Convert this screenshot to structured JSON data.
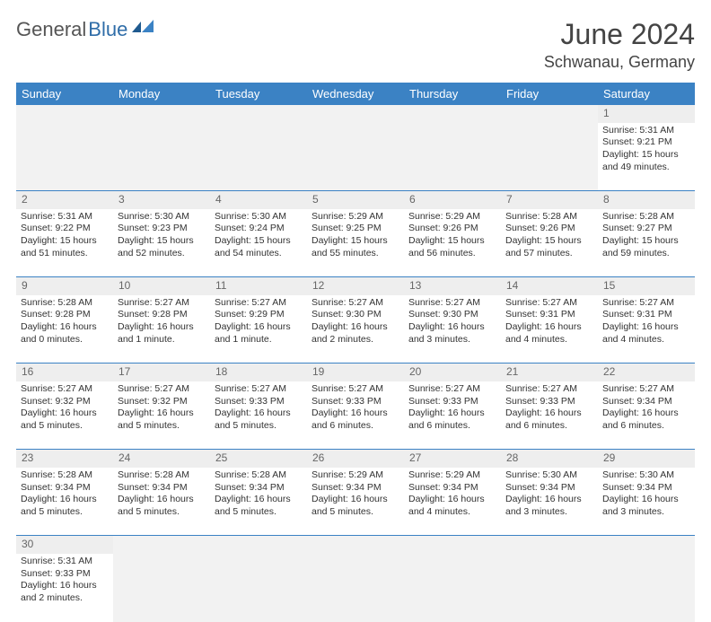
{
  "brand": {
    "part1": "General",
    "part2": "Blue",
    "color1": "#555555",
    "color2": "#2f6da8"
  },
  "title": "June 2024",
  "subtitle": "Schwanau, Germany",
  "header_bg": "#3b82c4",
  "header_fg": "#ffffff",
  "daynum_bg": "#eeeeee",
  "empty_bg": "#f2f2f2",
  "row_border": "#3b82c4",
  "columns": [
    "Sunday",
    "Monday",
    "Tuesday",
    "Wednesday",
    "Thursday",
    "Friday",
    "Saturday"
  ],
  "weeks": [
    [
      null,
      null,
      null,
      null,
      null,
      null,
      {
        "n": "1",
        "sr": "5:31 AM",
        "ss": "9:21 PM",
        "dl": "15 hours and 49 minutes."
      }
    ],
    [
      {
        "n": "2",
        "sr": "5:31 AM",
        "ss": "9:22 PM",
        "dl": "15 hours and 51 minutes."
      },
      {
        "n": "3",
        "sr": "5:30 AM",
        "ss": "9:23 PM",
        "dl": "15 hours and 52 minutes."
      },
      {
        "n": "4",
        "sr": "5:30 AM",
        "ss": "9:24 PM",
        "dl": "15 hours and 54 minutes."
      },
      {
        "n": "5",
        "sr": "5:29 AM",
        "ss": "9:25 PM",
        "dl": "15 hours and 55 minutes."
      },
      {
        "n": "6",
        "sr": "5:29 AM",
        "ss": "9:26 PM",
        "dl": "15 hours and 56 minutes."
      },
      {
        "n": "7",
        "sr": "5:28 AM",
        "ss": "9:26 PM",
        "dl": "15 hours and 57 minutes."
      },
      {
        "n": "8",
        "sr": "5:28 AM",
        "ss": "9:27 PM",
        "dl": "15 hours and 59 minutes."
      }
    ],
    [
      {
        "n": "9",
        "sr": "5:28 AM",
        "ss": "9:28 PM",
        "dl": "16 hours and 0 minutes."
      },
      {
        "n": "10",
        "sr": "5:27 AM",
        "ss": "9:28 PM",
        "dl": "16 hours and 1 minute."
      },
      {
        "n": "11",
        "sr": "5:27 AM",
        "ss": "9:29 PM",
        "dl": "16 hours and 1 minute."
      },
      {
        "n": "12",
        "sr": "5:27 AM",
        "ss": "9:30 PM",
        "dl": "16 hours and 2 minutes."
      },
      {
        "n": "13",
        "sr": "5:27 AM",
        "ss": "9:30 PM",
        "dl": "16 hours and 3 minutes."
      },
      {
        "n": "14",
        "sr": "5:27 AM",
        "ss": "9:31 PM",
        "dl": "16 hours and 4 minutes."
      },
      {
        "n": "15",
        "sr": "5:27 AM",
        "ss": "9:31 PM",
        "dl": "16 hours and 4 minutes."
      }
    ],
    [
      {
        "n": "16",
        "sr": "5:27 AM",
        "ss": "9:32 PM",
        "dl": "16 hours and 5 minutes."
      },
      {
        "n": "17",
        "sr": "5:27 AM",
        "ss": "9:32 PM",
        "dl": "16 hours and 5 minutes."
      },
      {
        "n": "18",
        "sr": "5:27 AM",
        "ss": "9:33 PM",
        "dl": "16 hours and 5 minutes."
      },
      {
        "n": "19",
        "sr": "5:27 AM",
        "ss": "9:33 PM",
        "dl": "16 hours and 6 minutes."
      },
      {
        "n": "20",
        "sr": "5:27 AM",
        "ss": "9:33 PM",
        "dl": "16 hours and 6 minutes."
      },
      {
        "n": "21",
        "sr": "5:27 AM",
        "ss": "9:33 PM",
        "dl": "16 hours and 6 minutes."
      },
      {
        "n": "22",
        "sr": "5:27 AM",
        "ss": "9:34 PM",
        "dl": "16 hours and 6 minutes."
      }
    ],
    [
      {
        "n": "23",
        "sr": "5:28 AM",
        "ss": "9:34 PM",
        "dl": "16 hours and 5 minutes."
      },
      {
        "n": "24",
        "sr": "5:28 AM",
        "ss": "9:34 PM",
        "dl": "16 hours and 5 minutes."
      },
      {
        "n": "25",
        "sr": "5:28 AM",
        "ss": "9:34 PM",
        "dl": "16 hours and 5 minutes."
      },
      {
        "n": "26",
        "sr": "5:29 AM",
        "ss": "9:34 PM",
        "dl": "16 hours and 5 minutes."
      },
      {
        "n": "27",
        "sr": "5:29 AM",
        "ss": "9:34 PM",
        "dl": "16 hours and 4 minutes."
      },
      {
        "n": "28",
        "sr": "5:30 AM",
        "ss": "9:34 PM",
        "dl": "16 hours and 3 minutes."
      },
      {
        "n": "29",
        "sr": "5:30 AM",
        "ss": "9:34 PM",
        "dl": "16 hours and 3 minutes."
      }
    ],
    [
      {
        "n": "30",
        "sr": "5:31 AM",
        "ss": "9:33 PM",
        "dl": "16 hours and 2 minutes."
      },
      null,
      null,
      null,
      null,
      null,
      null
    ]
  ],
  "labels": {
    "sunrise": "Sunrise:",
    "sunset": "Sunset:",
    "daylight": "Daylight:"
  }
}
